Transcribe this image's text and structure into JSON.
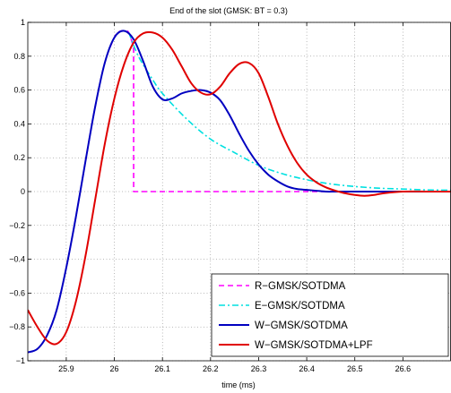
{
  "chart_data": {
    "type": "line",
    "title": "End of the slot (GMSK: BT = 0.3)",
    "xlabel": "time (ms)",
    "ylabel": "",
    "xlim": [
      25.82,
      26.7
    ],
    "ylim": [
      -1,
      1
    ],
    "xticks": [
      25.9,
      26,
      26.1,
      26.2,
      26.3,
      26.4,
      26.5,
      26.6
    ],
    "yticks": [
      -1,
      -0.8,
      -0.6,
      -0.4,
      -0.2,
      0,
      0.2,
      0.4,
      0.6,
      0.8,
      1
    ],
    "xtick_labels": [
      "25.9",
      "26",
      "26.1",
      "26.2",
      "26.3",
      "26.4",
      "26.5",
      "26.6"
    ],
    "ytick_labels": [
      "−1",
      "−0.8",
      "−0.6",
      "−0.4",
      "−0.2",
      "0",
      "0.2",
      "0.4",
      "0.6",
      "0.8",
      "1"
    ],
    "grid": true,
    "legend_position": "bottom-right",
    "series": [
      {
        "name": "R−GMSK/SOTDMA",
        "color": "#ff00ff",
        "style": "dashed",
        "x": [
          25.82,
          25.84,
          25.86,
          25.88,
          25.9,
          25.92,
          25.94,
          25.96,
          25.98,
          26.0,
          26.01,
          26.02,
          26.03,
          26.04,
          26.0401,
          26.7
        ],
        "y": [
          -0.95,
          -0.93,
          -0.85,
          -0.7,
          -0.45,
          -0.15,
          0.18,
          0.5,
          0.76,
          0.91,
          0.945,
          0.95,
          0.94,
          0.85,
          0.0,
          0.0
        ]
      },
      {
        "name": "E−GMSK/SOTDMA",
        "color": "#00e0e0",
        "style": "dashdot",
        "x": [
          26.03,
          26.05,
          26.08,
          26.1,
          26.15,
          26.2,
          26.25,
          26.3,
          26.35,
          26.4,
          26.45,
          26.5,
          26.55,
          26.6,
          26.65,
          26.7
        ],
        "y": [
          0.94,
          0.8,
          0.66,
          0.58,
          0.43,
          0.31,
          0.23,
          0.155,
          0.105,
          0.07,
          0.045,
          0.03,
          0.02,
          0.015,
          0.01,
          0.008
        ]
      },
      {
        "name": "W−GMSK/SOTDMA",
        "color": "#0000c0",
        "style": "solid",
        "x": [
          25.82,
          25.84,
          25.86,
          25.88,
          25.9,
          25.92,
          25.94,
          25.96,
          25.98,
          26.0,
          26.02,
          26.04,
          26.06,
          26.08,
          26.1,
          26.12,
          26.14,
          26.16,
          26.18,
          26.2,
          26.22,
          26.24,
          26.26,
          26.28,
          26.3,
          26.32,
          26.34,
          26.36,
          26.38,
          26.4,
          26.42,
          26.44,
          26.46,
          26.48,
          26.5,
          26.52,
          26.55,
          26.6,
          26.65,
          26.7
        ],
        "y": [
          -0.95,
          -0.93,
          -0.85,
          -0.7,
          -0.45,
          -0.15,
          0.18,
          0.5,
          0.76,
          0.91,
          0.95,
          0.9,
          0.77,
          0.62,
          0.545,
          0.55,
          0.58,
          0.595,
          0.6,
          0.585,
          0.54,
          0.45,
          0.34,
          0.24,
          0.16,
          0.1,
          0.06,
          0.03,
          0.015,
          0.01,
          0.005,
          0.0,
          0.0,
          0.0,
          0.0,
          0.0,
          0.0,
          0.0,
          0.0,
          0.0
        ]
      },
      {
        "name": "W−GMSK/SOTDMA+LPF",
        "color": "#e00000",
        "style": "solid",
        "x": [
          25.82,
          25.84,
          25.86,
          25.88,
          25.9,
          25.92,
          25.94,
          25.96,
          25.98,
          26.0,
          26.02,
          26.04,
          26.06,
          26.08,
          26.1,
          26.12,
          26.14,
          26.16,
          26.18,
          26.2,
          26.22,
          26.24,
          26.26,
          26.28,
          26.3,
          26.32,
          26.34,
          26.36,
          26.38,
          26.4,
          26.42,
          26.44,
          26.46,
          26.48,
          26.5,
          26.52,
          26.54,
          26.56,
          26.6,
          26.65,
          26.7
        ],
        "y": [
          -0.7,
          -0.8,
          -0.88,
          -0.9,
          -0.83,
          -0.65,
          -0.38,
          -0.05,
          0.28,
          0.55,
          0.75,
          0.88,
          0.935,
          0.94,
          0.91,
          0.84,
          0.74,
          0.64,
          0.585,
          0.575,
          0.62,
          0.7,
          0.755,
          0.76,
          0.7,
          0.56,
          0.4,
          0.27,
          0.17,
          0.1,
          0.055,
          0.025,
          0.005,
          -0.01,
          -0.02,
          -0.025,
          -0.02,
          -0.01,
          0.0,
          0.0,
          0.0
        ]
      }
    ]
  }
}
